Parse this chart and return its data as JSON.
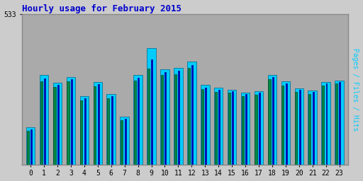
{
  "title": "Hourly usage for February 2015",
  "hours": [
    0,
    1,
    2,
    3,
    4,
    5,
    6,
    7,
    8,
    9,
    10,
    11,
    12,
    13,
    14,
    15,
    16,
    17,
    18,
    19,
    20,
    21,
    22,
    23
  ],
  "pages": [
    120,
    295,
    275,
    295,
    228,
    278,
    235,
    158,
    298,
    340,
    318,
    320,
    342,
    267,
    258,
    254,
    243,
    248,
    302,
    280,
    258,
    250,
    280,
    287
  ],
  "files": [
    125,
    305,
    282,
    302,
    235,
    284,
    241,
    163,
    308,
    373,
    326,
    332,
    353,
    273,
    264,
    259,
    249,
    254,
    309,
    287,
    264,
    256,
    286,
    292
  ],
  "hits": [
    133,
    318,
    290,
    310,
    243,
    292,
    249,
    170,
    318,
    412,
    336,
    342,
    365,
    281,
    271,
    265,
    255,
    260,
    317,
    294,
    270,
    262,
    292,
    298
  ],
  "ylim_max": 533,
  "pages_color": "#008844",
  "files_color": "#0000cc",
  "hits_color": "#00ccff",
  "bg_color": "#cccccc",
  "plot_bg_color": "#aaaaaa",
  "border_color": "#888888",
  "title_color": "#0000cc",
  "bar_width": 0.3,
  "figsize": [
    5.12,
    2.56
  ],
  "dpi": 100
}
